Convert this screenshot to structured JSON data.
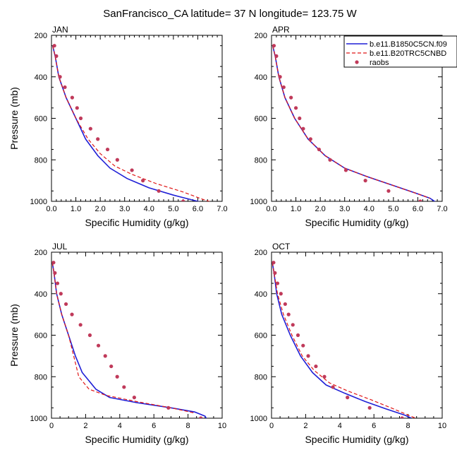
{
  "title": "SanFrancisco_CA  latitude= 37 N longitude= 123.75 W",
  "colors": {
    "model1": "#1f1fd6",
    "model2": "#e01818",
    "obs": "#c03a5a"
  },
  "legend": {
    "entries": [
      "b.e11.B1850C5CN.f09",
      "b.e11.B20TRC5CNBD",
      "raobs"
    ],
    "placement": "top-right of APR panel"
  },
  "chart_data": [
    {
      "type": "line",
      "panel": "JAN",
      "xlabel": "Specific Humidity (g/kg)",
      "ylabel": "Pressure (mb)",
      "xlim": [
        0,
        7
      ],
      "ylim": [
        1000,
        200
      ],
      "y_inverted": true,
      "xticks": [
        "0.0",
        "1.0",
        "2.0",
        "3.0",
        "4.0",
        "5.0",
        "6.0",
        "7.0"
      ],
      "yticks": [
        "200",
        "400",
        "600",
        "800",
        "1000"
      ],
      "series": [
        {
          "name": "b.e11.B1850C5CN.f09",
          "style": "solid",
          "x": [
            0.05,
            0.15,
            0.3,
            0.6,
            1.0,
            1.4,
            1.9,
            2.4,
            3.1,
            4.0,
            5.0,
            6.0,
            6.4
          ],
          "y": [
            250,
            300,
            400,
            500,
            600,
            700,
            780,
            840,
            890,
            935,
            970,
            1000,
            1010
          ]
        },
        {
          "name": "b.e11.B20TRC5CNBD",
          "style": "dashed",
          "x": [
            0.05,
            0.15,
            0.3,
            0.6,
            1.0,
            1.5,
            2.0,
            2.6,
            3.3,
            4.3,
            5.4,
            6.2,
            6.6
          ],
          "y": [
            250,
            300,
            400,
            500,
            600,
            700,
            770,
            830,
            870,
            915,
            955,
            990,
            1005
          ]
        },
        {
          "name": "raobs",
          "style": "points",
          "x": [
            0.12,
            0.2,
            0.35,
            0.55,
            0.85,
            1.05,
            1.2,
            1.6,
            1.9,
            2.3,
            2.7,
            3.3,
            3.75,
            4.4,
            5.4
          ],
          "y": [
            250,
            300,
            400,
            450,
            500,
            550,
            600,
            650,
            700,
            750,
            800,
            850,
            900,
            950,
            1000
          ]
        }
      ]
    },
    {
      "type": "line",
      "panel": "APR",
      "xlabel": "Specific Humidity (g/kg)",
      "ylabel": "",
      "xlim": [
        0,
        7
      ],
      "ylim": [
        1000,
        200
      ],
      "y_inverted": true,
      "xticks": [
        "0.0",
        "1.0",
        "2.0",
        "3.0",
        "4.0",
        "5.0",
        "6.0",
        "7.0"
      ],
      "yticks": [
        "200",
        "400",
        "600",
        "800",
        "1000"
      ],
      "series": [
        {
          "name": "b.e11.B1850C5CN.f09",
          "style": "solid",
          "x": [
            0.05,
            0.15,
            0.3,
            0.55,
            0.95,
            1.5,
            2.2,
            3.0,
            3.9,
            4.9,
            5.9,
            6.5,
            6.75
          ],
          "y": [
            250,
            300,
            400,
            500,
            600,
            700,
            780,
            840,
            880,
            920,
            960,
            985,
            1005
          ]
        },
        {
          "name": "b.e11.B20TRC5CNBD",
          "style": "dashed",
          "x": [
            0.05,
            0.15,
            0.3,
            0.55,
            0.95,
            1.5,
            2.2,
            3.0,
            3.9,
            4.9,
            5.9,
            6.5
          ],
          "y": [
            250,
            300,
            400,
            500,
            600,
            700,
            780,
            840,
            880,
            920,
            960,
            985
          ]
        },
        {
          "name": "raobs",
          "style": "points",
          "x": [
            0.1,
            0.2,
            0.35,
            0.5,
            0.8,
            1.0,
            1.15,
            1.3,
            1.6,
            1.95,
            2.4,
            3.05,
            3.85,
            4.8,
            6.1
          ],
          "y": [
            250,
            300,
            400,
            450,
            500,
            550,
            600,
            650,
            700,
            750,
            800,
            850,
            900,
            950,
            1000
          ]
        }
      ]
    },
    {
      "type": "line",
      "panel": "JUL",
      "xlabel": "Specific Humidity (g/kg)",
      "ylabel": "Pressure (mb)",
      "xlim": [
        0,
        10
      ],
      "ylim": [
        1000,
        200
      ],
      "y_inverted": true,
      "xticks": [
        "0",
        "2",
        "4",
        "6",
        "8",
        "10"
      ],
      "yticks": [
        "200",
        "400",
        "600",
        "800",
        "1000"
      ],
      "series": [
        {
          "name": "b.e11.B1850C5CN.f09",
          "style": "solid",
          "x": [
            0.05,
            0.15,
            0.3,
            0.6,
            1.0,
            1.4,
            1.8,
            2.6,
            3.4,
            5.0,
            7.0,
            8.4,
            9.0,
            9.1
          ],
          "y": [
            250,
            300,
            400,
            500,
            600,
            700,
            780,
            860,
            900,
            925,
            950,
            970,
            990,
            1005
          ]
        },
        {
          "name": "b.e11.B20TRC5CNBD",
          "style": "dashed",
          "x": [
            0.05,
            0.15,
            0.3,
            0.6,
            1.0,
            1.3,
            1.6,
            2.2,
            3.2,
            5.0,
            7.0,
            8.4
          ],
          "y": [
            250,
            300,
            400,
            500,
            600,
            700,
            800,
            860,
            890,
            920,
            950,
            975
          ]
        },
        {
          "name": "raobs",
          "style": "points",
          "x": [
            0.12,
            0.2,
            0.35,
            0.55,
            0.85,
            1.2,
            1.7,
            2.25,
            2.75,
            3.15,
            3.5,
            3.85,
            4.25,
            4.85,
            6.85,
            8.75
          ],
          "y": [
            250,
            300,
            350,
            400,
            450,
            500,
            550,
            600,
            650,
            700,
            750,
            800,
            850,
            900,
            950,
            1000
          ]
        }
      ]
    },
    {
      "type": "line",
      "panel": "OCT",
      "xlabel": "Specific Humidity (g/kg)",
      "ylabel": "",
      "xlim": [
        0,
        10
      ],
      "ylim": [
        1000,
        200
      ],
      "y_inverted": true,
      "xticks": [
        "0",
        "2",
        "4",
        "6",
        "8",
        "10"
      ],
      "yticks": [
        "200",
        "400",
        "600",
        "800",
        "1000"
      ],
      "series": [
        {
          "name": "b.e11.B1850C5CN.f09",
          "style": "solid",
          "x": [
            0.05,
            0.15,
            0.3,
            0.6,
            1.1,
            1.7,
            2.4,
            3.2,
            4.3,
            5.5,
            6.7,
            7.8,
            8.2
          ],
          "y": [
            250,
            300,
            400,
            500,
            600,
            700,
            780,
            840,
            880,
            920,
            955,
            985,
            1000
          ]
        },
        {
          "name": "b.e11.B20TRC5CNBD",
          "style": "dashed",
          "x": [
            0.05,
            0.15,
            0.35,
            0.7,
            1.2,
            1.8,
            2.5,
            3.4,
            4.5,
            5.8,
            7.0,
            8.0,
            8.6
          ],
          "y": [
            250,
            300,
            400,
            500,
            600,
            700,
            770,
            830,
            870,
            910,
            950,
            985,
            1005
          ]
        },
        {
          "name": "raobs",
          "style": "points",
          "x": [
            0.12,
            0.2,
            0.35,
            0.55,
            0.8,
            1.0,
            1.25,
            1.55,
            1.85,
            2.15,
            2.6,
            3.1,
            3.6,
            4.45,
            5.75,
            7.65
          ],
          "y": [
            250,
            300,
            350,
            400,
            450,
            500,
            550,
            600,
            650,
            700,
            750,
            800,
            850,
            900,
            950,
            1000
          ]
        }
      ]
    }
  ]
}
